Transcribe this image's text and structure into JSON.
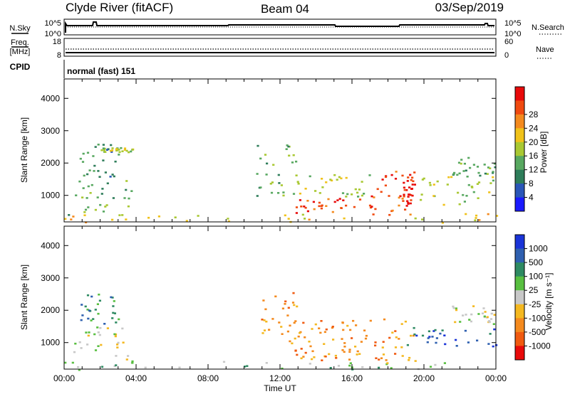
{
  "header": {
    "station": "Clyde River (fitACF)",
    "beam": "Beam 04",
    "date": "03/Sep/2019"
  },
  "top_panels": {
    "nsky_label": "N.Sky",
    "nsky_ticks": [
      "10^5",
      "10^0"
    ],
    "nsearch_label": "N.Search",
    "nsearch_ticks": [
      "10^5",
      "10^0"
    ],
    "freq_label": "Freq.",
    "freq_unit": "[MHz]",
    "freq_ticks": [
      "18",
      "8"
    ],
    "nave_label": "Nave",
    "nave_ticks": [
      "60",
      "0"
    ],
    "cpid_label": "CPID",
    "cpid_value": "normal (fast) 151"
  },
  "chart_data": [
    {
      "type": "heatmap",
      "name": "power",
      "ylabel": "Slant Range [km]",
      "xlabel": "Time UT",
      "x_ticks": [
        "00:00",
        "04:00",
        "08:00",
        "12:00",
        "16:00",
        "20:00",
        "00:00"
      ],
      "xlim_hours": [
        0,
        24
      ],
      "y_ticks": [
        1000,
        2000,
        3000,
        4000
      ],
      "ylim": [
        180,
        4600
      ],
      "colorbar": {
        "label": "Power [dB]",
        "ticks": [
          "4",
          "8",
          "12",
          "16",
          "20",
          "24",
          "28"
        ],
        "colors": [
          "#1a1aff",
          "#2a56b8",
          "#2e7d5a",
          "#58a860",
          "#a9c832",
          "#f0c21a",
          "#f48a1e",
          "#f04a10",
          "#e80a0a"
        ]
      },
      "echo_regions": [
        {
          "t0": 0.0,
          "t1": 24.0,
          "r0": 180,
          "r1": 450,
          "level": 5
        },
        {
          "t0": 0.2,
          "t1": 4.0,
          "r0": 400,
          "r1": 1500,
          "level": 3
        },
        {
          "t0": 0.8,
          "t1": 3.0,
          "r0": 1600,
          "r1": 2600,
          "level": 2
        },
        {
          "t0": 2.0,
          "t1": 3.8,
          "r0": 2350,
          "r1": 2500,
          "level": 4
        },
        {
          "t0": 10.5,
          "t1": 13.0,
          "r0": 1000,
          "r1": 2600,
          "level": 3
        },
        {
          "t0": 12.8,
          "t1": 16.5,
          "r0": 450,
          "r1": 950,
          "level": 7
        },
        {
          "t0": 12.7,
          "t1": 17.0,
          "r0": 950,
          "r1": 1700,
          "level": 4
        },
        {
          "t0": 16.5,
          "t1": 19.5,
          "r0": 350,
          "r1": 1800,
          "level": 7
        },
        {
          "t0": 18.8,
          "t1": 19.4,
          "r0": 700,
          "r1": 1700,
          "level": 8
        },
        {
          "t0": 19.0,
          "t1": 24.0,
          "r0": 700,
          "r1": 1600,
          "level": 4
        },
        {
          "t0": 21.5,
          "t1": 24.0,
          "r0": 1600,
          "r1": 2200,
          "level": 3
        }
      ]
    },
    {
      "type": "heatmap",
      "name": "velocity",
      "ylabel": "Slant Range [km]",
      "xlabel": "Time UT",
      "x_ticks": [
        "00:00",
        "04:00",
        "08:00",
        "12:00",
        "16:00",
        "20:00",
        "00:00"
      ],
      "xlim_hours": [
        0,
        24
      ],
      "y_ticks": [
        1000,
        2000,
        3000,
        4000
      ],
      "ylim": [
        180,
        4600
      ],
      "colorbar": {
        "label": "Velocity [m s⁻¹]",
        "ticks": [
          "1000",
          "500",
          "100",
          "25",
          "-25",
          "-100",
          "-500",
          "-1000"
        ],
        "colors": [
          "#1a34d8",
          "#2f60b0",
          "#2e8a62",
          "#58bf40",
          "#c8c8c8",
          "#f4b820",
          "#f48a1e",
          "#f05a10",
          "#e80a0a"
        ]
      },
      "echo_regions": [
        {
          "t0": 0.0,
          "t1": 24.0,
          "r0": 180,
          "r1": 450,
          "level": 3
        },
        {
          "t0": 0.5,
          "t1": 3.5,
          "r0": 500,
          "r1": 1500,
          "level": 4
        },
        {
          "t0": 0.8,
          "t1": 3.0,
          "r0": 1600,
          "r1": 2600,
          "level": 2
        },
        {
          "t0": 10.5,
          "t1": 13.0,
          "r0": 1000,
          "r1": 2600,
          "level": 6
        },
        {
          "t0": 12.8,
          "t1": 16.5,
          "r0": 450,
          "r1": 950,
          "level": 6
        },
        {
          "t0": 12.7,
          "t1": 17.0,
          "r0": 950,
          "r1": 1700,
          "level": 6
        },
        {
          "t0": 16.5,
          "t1": 19.5,
          "r0": 350,
          "r1": 1800,
          "level": 6
        },
        {
          "t0": 19.0,
          "t1": 24.0,
          "r0": 900,
          "r1": 1500,
          "level": 1
        },
        {
          "t0": 21.5,
          "t1": 24.0,
          "r0": 1600,
          "r1": 2200,
          "level": 4
        }
      ]
    }
  ]
}
